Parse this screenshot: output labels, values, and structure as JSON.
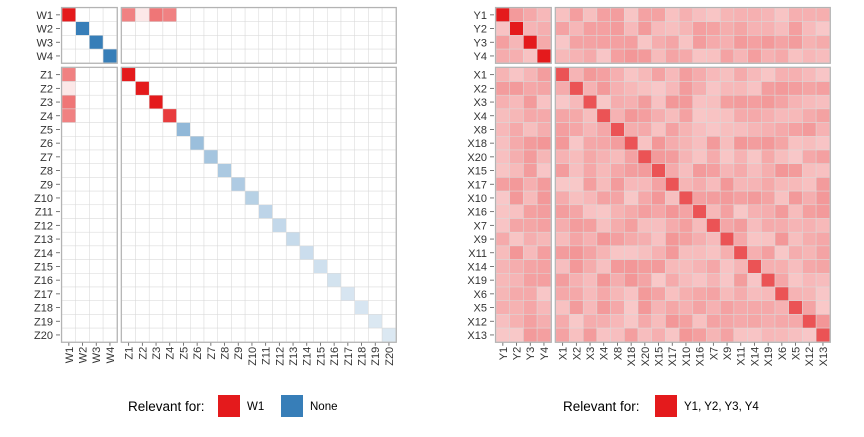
{
  "chart_data": [
    {
      "type": "heatmap",
      "row_blocks": [
        {
          "labels": [
            "W1",
            "W2",
            "W3",
            "W4"
          ]
        },
        {
          "labels": [
            "Z1",
            "Z2",
            "Z3",
            "Z4",
            "Z5",
            "Z6",
            "Z7",
            "Z8",
            "Z9",
            "Z10",
            "Z11",
            "Z12",
            "Z13",
            "Z14",
            "Z15",
            "Z16",
            "Z17",
            "Z18",
            "Z19",
            "Z20"
          ]
        }
      ],
      "col_blocks": [
        {
          "labels": [
            "W1",
            "W2",
            "W3",
            "W4"
          ]
        },
        {
          "labels": [
            "Z1",
            "Z2",
            "Z3",
            "Z4",
            "Z5",
            "Z6",
            "Z7",
            "Z8",
            "Z9",
            "Z10",
            "Z11",
            "Z12",
            "Z13",
            "Z14",
            "Z15",
            "Z16",
            "Z17",
            "Z18",
            "Z19",
            "Z20"
          ]
        }
      ],
      "cells": [
        {
          "row": "W1",
          "col": "W1",
          "group": "W1",
          "intensity": 1.0
        },
        {
          "row": "W2",
          "col": "W2",
          "group": "None",
          "intensity": 1.0
        },
        {
          "row": "W3",
          "col": "W3",
          "group": "None",
          "intensity": 1.0
        },
        {
          "row": "W4",
          "col": "W4",
          "group": "None",
          "intensity": 1.0
        },
        {
          "row": "W1",
          "col": "Z1",
          "group": "W1",
          "intensity": 0.55
        },
        {
          "row": "W1",
          "col": "Z2",
          "group": "W1",
          "intensity": 0.1
        },
        {
          "row": "W1",
          "col": "Z3",
          "group": "W1",
          "intensity": 0.6
        },
        {
          "row": "W1",
          "col": "Z4",
          "group": "W1",
          "intensity": 0.55
        },
        {
          "row": "Z1",
          "col": "W1",
          "group": "W1",
          "intensity": 0.55
        },
        {
          "row": "Z2",
          "col": "W1",
          "group": "W1",
          "intensity": 0.1
        },
        {
          "row": "Z3",
          "col": "W1",
          "group": "W1",
          "intensity": 0.6
        },
        {
          "row": "Z4",
          "col": "W1",
          "group": "W1",
          "intensity": 0.55
        },
        {
          "row": "Z1",
          "col": "Z1",
          "group": "W1",
          "intensity": 1.0
        },
        {
          "row": "Z2",
          "col": "Z2",
          "group": "W1",
          "intensity": 1.0
        },
        {
          "row": "Z3",
          "col": "Z3",
          "group": "W1",
          "intensity": 1.0
        },
        {
          "row": "Z4",
          "col": "Z4",
          "group": "W1",
          "intensity": 0.85
        },
        {
          "row": "Z5",
          "col": "Z5",
          "group": "None",
          "intensity": 0.55
        },
        {
          "row": "Z6",
          "col": "Z6",
          "group": "None",
          "intensity": 0.5
        },
        {
          "row": "Z7",
          "col": "Z7",
          "group": "None",
          "intensity": 0.45
        },
        {
          "row": "Z8",
          "col": "Z8",
          "group": "None",
          "intensity": 0.42
        },
        {
          "row": "Z9",
          "col": "Z9",
          "group": "None",
          "intensity": 0.4
        },
        {
          "row": "Z10",
          "col": "Z10",
          "group": "None",
          "intensity": 0.36
        },
        {
          "row": "Z11",
          "col": "Z11",
          "group": "None",
          "intensity": 0.33
        },
        {
          "row": "Z12",
          "col": "Z12",
          "group": "None",
          "intensity": 0.3
        },
        {
          "row": "Z13",
          "col": "Z13",
          "group": "None",
          "intensity": 0.28
        },
        {
          "row": "Z14",
          "col": "Z14",
          "group": "None",
          "intensity": 0.26
        },
        {
          "row": "Z15",
          "col": "Z15",
          "group": "None",
          "intensity": 0.24
        },
        {
          "row": "Z16",
          "col": "Z16",
          "group": "None",
          "intensity": 0.22
        },
        {
          "row": "Z17",
          "col": "Z17",
          "group": "None",
          "intensity": 0.2
        },
        {
          "row": "Z18",
          "col": "Z18",
          "group": "None",
          "intensity": 0.2
        },
        {
          "row": "Z19",
          "col": "Z19",
          "group": "None",
          "intensity": 0.18
        },
        {
          "row": "Z20",
          "col": "Z20",
          "group": "None",
          "intensity": 0.18
        }
      ],
      "legend": {
        "title": "Relevant for:",
        "position": "bottom",
        "items": [
          {
            "label": "W1",
            "color": "#e41a1c"
          },
          {
            "label": "None",
            "color": "#377eb8"
          }
        ]
      }
    },
    {
      "type": "heatmap",
      "row_blocks": [
        {
          "labels": [
            "Y1",
            "Y2",
            "Y3",
            "Y4"
          ]
        },
        {
          "labels": [
            "X1",
            "X2",
            "X3",
            "X4",
            "X8",
            "X18",
            "X20",
            "X15",
            "X17",
            "X10",
            "X16",
            "X7",
            "X9",
            "X11",
            "X14",
            "X19",
            "X6",
            "X5",
            "X12",
            "X13"
          ]
        }
      ],
      "col_blocks": [
        {
          "labels": [
            "Y1",
            "Y2",
            "Y3",
            "Y4"
          ]
        },
        {
          "labels": [
            "X1",
            "X2",
            "X3",
            "X4",
            "X8",
            "X18",
            "X20",
            "X15",
            "X17",
            "X10",
            "X16",
            "X7",
            "X9",
            "X11",
            "X14",
            "X19",
            "X6",
            "X5",
            "X12",
            "X13"
          ]
        }
      ],
      "background": {
        "group": "Y1, Y2, Y3, Y4",
        "intensity": 0.35
      },
      "diagonal_intensity": 0.75,
      "cells": [
        {
          "row": "Y1",
          "col": "Y1",
          "group": "Y1, Y2, Y3, Y4",
          "intensity": 1.0
        },
        {
          "row": "Y2",
          "col": "Y2",
          "group": "Y1, Y2, Y3, Y4",
          "intensity": 1.0
        },
        {
          "row": "Y3",
          "col": "Y3",
          "group": "Y1, Y2, Y3, Y4",
          "intensity": 1.0
        },
        {
          "row": "Y4",
          "col": "Y4",
          "group": "Y1, Y2, Y3, Y4",
          "intensity": 1.0
        }
      ],
      "legend": {
        "title": "Relevant for:",
        "position": "bottom",
        "items": [
          {
            "label": "Y1, Y2, Y3, Y4",
            "color": "#e41a1c"
          }
        ]
      }
    }
  ]
}
